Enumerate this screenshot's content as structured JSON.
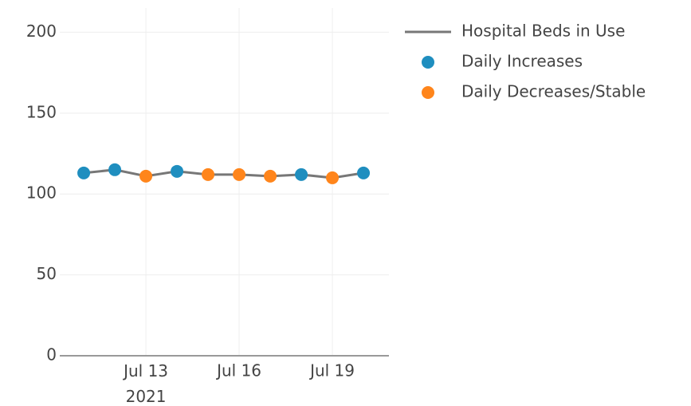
{
  "chart_data": {
    "type": "line",
    "x": [
      "2021-07-11",
      "2021-07-12",
      "2021-07-13",
      "2021-07-14",
      "2021-07-15",
      "2021-07-16",
      "2021-07-17",
      "2021-07-18",
      "2021-07-19",
      "2021-07-20"
    ],
    "series": [
      {
        "name": "Hospital Beds in Use",
        "mode": "lines",
        "color": "#777777",
        "values": [
          113,
          115,
          111,
          114,
          112,
          112,
          111,
          112,
          110,
          113
        ]
      },
      {
        "name": "Daily Increases",
        "mode": "markers",
        "color": "#1f8ebf",
        "values": [
          113,
          115,
          null,
          114,
          null,
          null,
          null,
          112,
          null,
          113
        ]
      },
      {
        "name": "Daily Decreases/Stable",
        "mode": "markers",
        "color": "#ff851b",
        "values": [
          null,
          null,
          111,
          null,
          112,
          112,
          111,
          null,
          110,
          null
        ]
      }
    ],
    "xlim": [
      "2021-07-10T05:30",
      "2021-07-20T19:40"
    ],
    "xticks": [
      {
        "value": "2021-07-13",
        "label": "Jul 13\n2021"
      },
      {
        "value": "2021-07-16",
        "label": "Jul 16"
      },
      {
        "value": "2021-07-19",
        "label": "Jul 19"
      }
    ],
    "ylim": [
      0,
      215
    ],
    "yticks": [
      0,
      50,
      100,
      150,
      200
    ],
    "grid": true,
    "legend": "right"
  }
}
